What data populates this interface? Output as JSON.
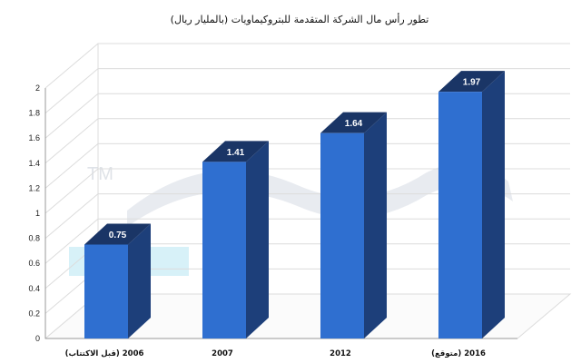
{
  "chart_data": {
    "type": "bar",
    "title": "تطور رأس مال الشركة المتقدمة للبتروكيماويات (بالمليار ريال)",
    "categories": [
      "2006 (قبل الاكتتاب)",
      "2007",
      "2012",
      "2016 (متوقع)"
    ],
    "values": [
      0.75,
      1.41,
      1.64,
      1.97
    ],
    "value_labels": [
      "0.75",
      "1.41",
      "1.64",
      "1.97"
    ],
    "yticks": [
      "0",
      "0.2",
      "0.4",
      "0.6",
      "0.8",
      "1",
      "1.2",
      "1.4",
      "1.6",
      "1.8",
      "2"
    ],
    "ylim": [
      0,
      2
    ],
    "xlabel": "",
    "ylabel": "",
    "grid": true,
    "three_d": true,
    "colors": {
      "bar_front": "#2f6fd0",
      "bar_side": "#1d3f7a",
      "bar_top": "#1a3566",
      "grid": "#dcdcdc",
      "watermark": "#e6e9ee"
    }
  },
  "watermark": {
    "tm": "TM"
  }
}
